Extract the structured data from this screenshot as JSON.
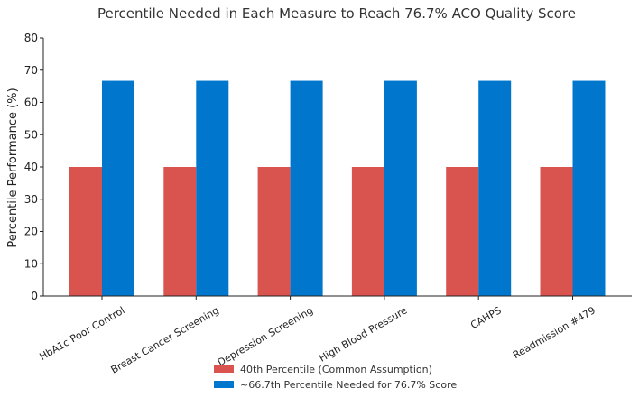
{
  "chart_data": {
    "type": "bar",
    "title": "Percentile Needed in Each Measure to Reach 76.7% ACO Quality Score",
    "xlabel": "",
    "ylabel": "Percentile Performance (%)",
    "ylim": [
      0,
      80
    ],
    "yticks": [
      "0",
      "10",
      "20",
      "30",
      "40",
      "50",
      "60",
      "70",
      "80"
    ],
    "categories": [
      "HbA1c Poor Control",
      "Breast Cancer Screening",
      "Depression Screening",
      "High Blood Pressure",
      "CAHPS",
      "Readmission #479"
    ],
    "series": [
      {
        "name": "40th Percentile (Common Assumption)",
        "color": "#d9534f",
        "values": [
          40,
          40,
          40,
          40,
          40,
          40
        ]
      },
      {
        "name": "~66.7th Percentile Needed for 76.7% Score",
        "color": "#0077cc",
        "values": [
          66.7,
          66.7,
          66.7,
          66.7,
          66.7,
          66.7
        ]
      }
    ],
    "grid": false,
    "legend_position": "bottom-center"
  }
}
